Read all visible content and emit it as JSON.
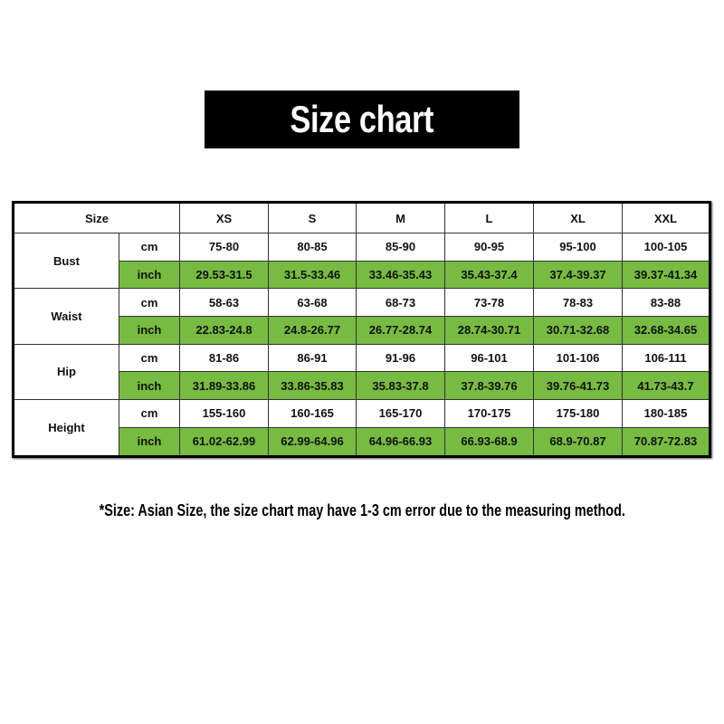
{
  "title": "Size chart",
  "colors": {
    "green": "#77bb42",
    "title_bg": "#000000"
  },
  "table": {
    "size_label": "Size",
    "sizes": [
      "XS",
      "S",
      "M",
      "L",
      "XL",
      "XXL"
    ],
    "measurements": [
      {
        "name": "Bust",
        "cm_label": "cm",
        "cm": [
          "75-80",
          "80-85",
          "85-90",
          "90-95",
          "95-100",
          "100-105"
        ],
        "inch_label": "inch",
        "inch": [
          "29.53-31.5",
          "31.5-33.46",
          "33.46-35.43",
          "35.43-37.4",
          "37.4-39.37",
          "39.37-41.34"
        ]
      },
      {
        "name": "Waist",
        "cm_label": "cm",
        "cm": [
          "58-63",
          "63-68",
          "68-73",
          "73-78",
          "78-83",
          "83-88"
        ],
        "inch_label": "inch",
        "inch": [
          "22.83-24.8",
          "24.8-26.77",
          "26.77-28.74",
          "28.74-30.71",
          "30.71-32.68",
          "32.68-34.65"
        ]
      },
      {
        "name": "Hip",
        "cm_label": "cm",
        "cm": [
          "81-86",
          "86-91",
          "91-96",
          "96-101",
          "101-106",
          "106-111"
        ],
        "inch_label": "inch",
        "inch": [
          "31.89-33.86",
          "33.86-35.83",
          "35.83-37.8",
          "37.8-39.76",
          "39.76-41.73",
          "41.73-43.7"
        ]
      },
      {
        "name": "Height",
        "cm_label": "cm",
        "cm": [
          "155-160",
          "160-165",
          "165-170",
          "170-175",
          "175-180",
          "180-185"
        ],
        "inch_label": "inch",
        "inch": [
          "61.02-62.99",
          "62.99-64.96",
          "64.96-66.93",
          "66.93-68.9",
          "68.9-70.87",
          "70.87-72.83"
        ]
      }
    ]
  },
  "footnote": "*Size: Asian Size, the size chart may have 1-3 cm error due to the measuring method."
}
